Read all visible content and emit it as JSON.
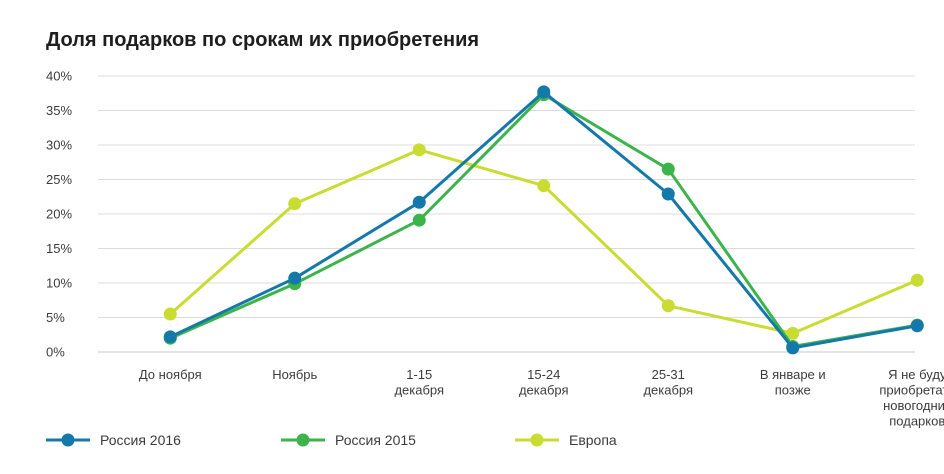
{
  "chart_data": {
    "type": "line",
    "title": "Доля подарков по срокам их приобретения",
    "categories": [
      [
        "До ноября"
      ],
      [
        "Ноябрь"
      ],
      [
        "1-15",
        "декабря"
      ],
      [
        "15-24",
        "декабря"
      ],
      [
        "25-31",
        "декабря"
      ],
      [
        "В январе и",
        "позже"
      ],
      [
        "Я не буду",
        "приобретать",
        "новогодних",
        "подарков"
      ]
    ],
    "yticks": [
      "0%",
      "5%",
      "10%",
      "15%",
      "20%",
      "25%",
      "30%",
      "35%",
      "40%"
    ],
    "ylim": [
      0,
      40
    ],
    "grid": true,
    "legend_position": "bottom",
    "series": [
      {
        "name": "Европа",
        "color": "#c8dc32",
        "values": [
          5.5,
          21.5,
          29.3,
          24.1,
          6.7,
          2.7,
          10.4
        ]
      },
      {
        "name": "Россия 2015",
        "color": "#3cb44b",
        "values": [
          2.0,
          9.9,
          19.1,
          37.3,
          26.5,
          0.8,
          3.9
        ]
      },
      {
        "name": "Россия 2016",
        "color": "#1478aa",
        "values": [
          2.2,
          10.7,
          21.7,
          37.7,
          22.9,
          0.6,
          3.8
        ]
      }
    ],
    "legend_order": [
      2,
      1,
      0
    ]
  }
}
